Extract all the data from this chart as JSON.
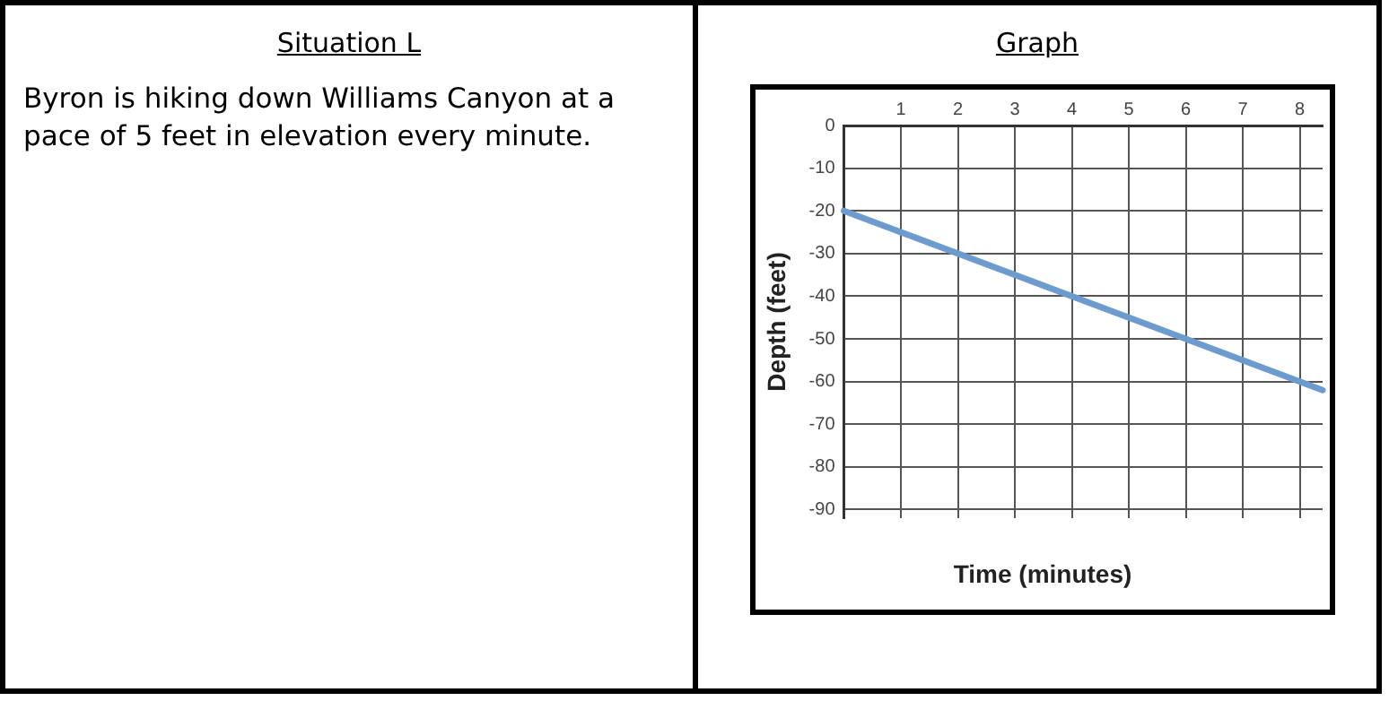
{
  "chart_data": [
    {
      "type": "other",
      "title": "Situation L",
      "annotations": [
        "Byron is hiking down Williams Canyon at a pace of 5 feet in elevation every minute."
      ]
    },
    {
      "type": "line",
      "title": "Graph",
      "xlabel": "Time (minutes)",
      "ylabel": "Depth (feet)",
      "x": [
        0,
        8.4
      ],
      "series": [
        {
          "color": "#6d9bd0",
          "values": [
            -20,
            -62
          ]
        }
      ],
      "xlim": [
        0,
        8.4
      ],
      "ylim": [
        -92,
        0
      ],
      "xticks": [
        1,
        2,
        3,
        4,
        5,
        6,
        7,
        8
      ],
      "yticks": [
        0,
        -10,
        -20,
        -30,
        -40,
        -50,
        -60,
        -70,
        -80,
        -90
      ],
      "grid": true,
      "legend": false,
      "marker": "none",
      "line_style": "solid"
    }
  ]
}
